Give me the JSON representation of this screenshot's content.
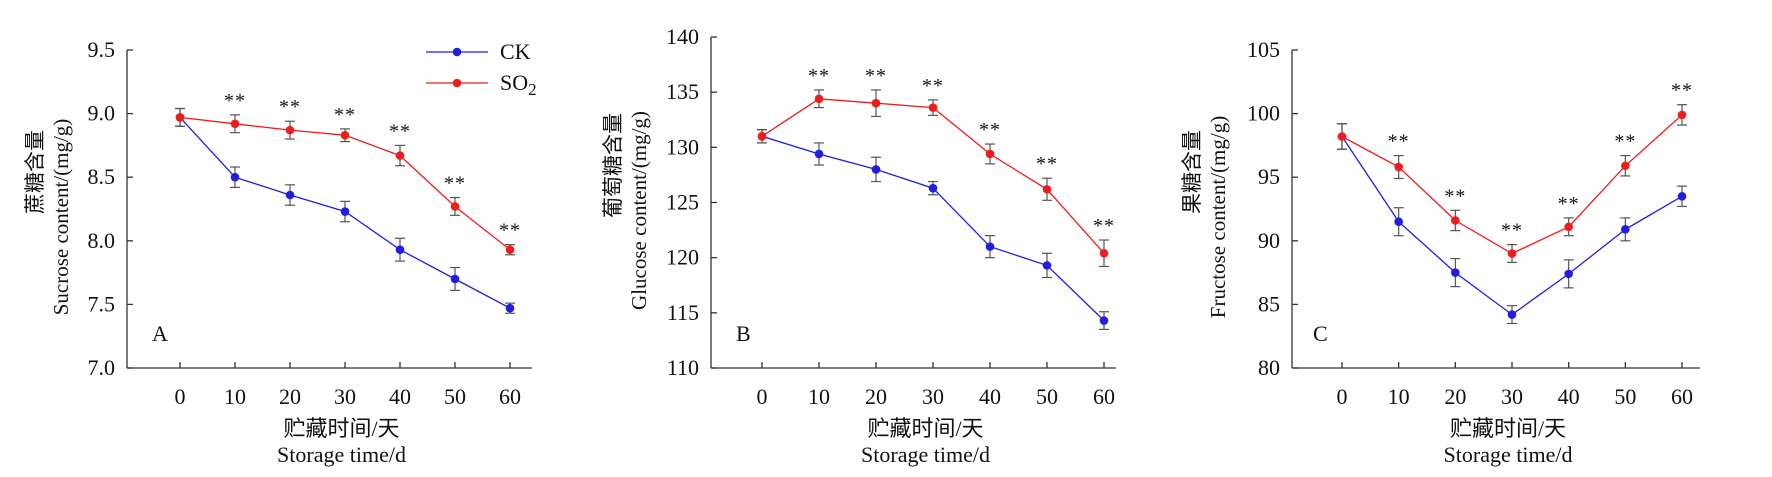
{
  "legend": {
    "ck_label": "CK",
    "so2_label": "SO",
    "so2_sub": "2",
    "placement": "top-right of panel A"
  },
  "colors": {
    "CK": "#1f1fdd",
    "SO2": "#ee1c1c",
    "axis": "#333333",
    "errorbar": "#555555"
  },
  "chart_data": [
    {
      "panel": "A",
      "type": "line",
      "ylabel_cn": "蔗糖含量",
      "ylabel_en": "Sucrose content/(mg/g)",
      "xlabel_cn": "贮藏时间/天",
      "xlabel_en": "Storage time/d",
      "x": [
        0,
        10,
        20,
        30,
        40,
        50,
        60
      ],
      "ylim": [
        7.0,
        9.5
      ],
      "yticks": [
        "7.0",
        "7.5",
        "8.0",
        "8.5",
        "9.0",
        "9.5"
      ],
      "grid": false,
      "series": [
        {
          "name": "CK",
          "values": [
            8.97,
            8.5,
            8.36,
            8.23,
            7.93,
            7.7,
            7.47
          ],
          "errors": [
            0.07,
            0.08,
            0.08,
            0.08,
            0.09,
            0.09,
            0.04
          ]
        },
        {
          "name": "SO2",
          "values": [
            8.97,
            8.92,
            8.87,
            8.83,
            8.67,
            8.27,
            7.93
          ],
          "errors": [
            0.07,
            0.07,
            0.07,
            0.05,
            0.08,
            0.07,
            0.04
          ]
        }
      ],
      "significance": [
        "",
        "**",
        "**",
        "**",
        "**",
        "**",
        "**"
      ]
    },
    {
      "panel": "B",
      "type": "line",
      "ylabel_cn": "葡萄糖含量",
      "ylabel_en": "Glucose content/(mg/g)",
      "xlabel_cn": "贮藏时间/天",
      "xlabel_en": "Storage time/d",
      "x": [
        0,
        10,
        20,
        30,
        40,
        50,
        60
      ],
      "ylim": [
        110,
        140
      ],
      "yticks": [
        "110",
        "115",
        "120",
        "125",
        "130",
        "135",
        "140"
      ],
      "grid": false,
      "series": [
        {
          "name": "CK",
          "values": [
            131.0,
            129.4,
            128.0,
            126.3,
            121.0,
            119.3,
            114.3
          ],
          "errors": [
            0.6,
            1.0,
            1.1,
            0.6,
            1.0,
            1.1,
            0.8
          ]
        },
        {
          "name": "SO2",
          "values": [
            131.0,
            134.4,
            134.0,
            133.6,
            129.4,
            126.2,
            120.4
          ],
          "errors": [
            0.6,
            0.8,
            1.2,
            0.7,
            0.9,
            1.0,
            1.2
          ]
        }
      ],
      "significance": [
        "",
        "**",
        "**",
        "**",
        "**",
        "**",
        "**"
      ]
    },
    {
      "panel": "C",
      "type": "line",
      "ylabel_cn": "果糖含量",
      "ylabel_en": "Fructose content/(mg/g)",
      "xlabel_cn": "贮藏时间/天",
      "xlabel_en": "Storage time/d",
      "x": [
        0,
        10,
        20,
        30,
        40,
        50,
        60
      ],
      "ylim": [
        80,
        105
      ],
      "yticks": [
        "80",
        "85",
        "90",
        "95",
        "100",
        "105"
      ],
      "grid": false,
      "series": [
        {
          "name": "CK",
          "values": [
            98.2,
            91.5,
            87.5,
            84.2,
            87.4,
            90.9,
            93.5
          ],
          "errors": [
            1.0,
            1.1,
            1.1,
            0.7,
            1.1,
            0.9,
            0.8
          ]
        },
        {
          "name": "SO2",
          "values": [
            98.2,
            95.8,
            91.6,
            89.0,
            91.1,
            95.9,
            99.9
          ],
          "errors": [
            1.0,
            0.9,
            0.8,
            0.7,
            0.7,
            0.8,
            0.8
          ]
        }
      ],
      "significance": [
        "",
        "**",
        "**",
        "**",
        "**",
        "**",
        "**"
      ]
    }
  ]
}
